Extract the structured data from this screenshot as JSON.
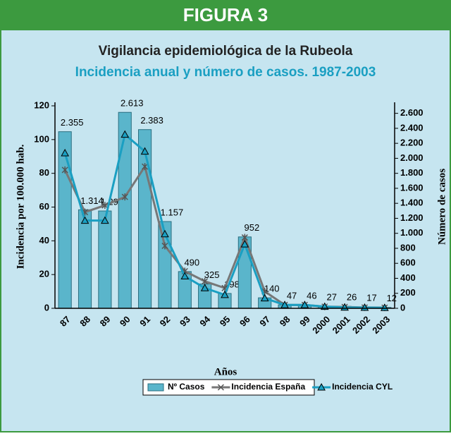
{
  "chart_data": {
    "type": "bar-line",
    "header": "FIGURA 3",
    "title": "Vigilancia epidemiológica de la Rubeola",
    "subtitle": "Incidencia anual y número de casos. 1987-2003",
    "y_label": "Incidencia por 100.000 hab.",
    "y2_label": "Número de casos",
    "x_label": "Años",
    "categories": [
      "87",
      "88",
      "89",
      "90",
      "91",
      "92",
      "93",
      "94",
      "95",
      "96",
      "97",
      "98",
      "99",
      "2000",
      "2001",
      "2002",
      "2003"
    ],
    "series": [
      {
        "name": "Nº Casos",
        "kind": "bar",
        "axis": "y2",
        "color": "#5ab5cb",
        "values": [
          2355,
          1314,
          1298,
          2613,
          2383,
          1157,
          490,
          325,
          198,
          952,
          140,
          47,
          46,
          27,
          26,
          17,
          12
        ],
        "value_labels": [
          "2.355",
          "1.314",
          "1.298",
          "2.613",
          "2.383",
          "1.157",
          "490",
          "325",
          "198",
          "952",
          "140",
          "47",
          "46",
          "27",
          "26",
          "17",
          "12"
        ]
      },
      {
        "name": "Incidencia España",
        "kind": "line",
        "color": "#777777",
        "values": [
          82,
          57,
          61,
          66,
          84,
          37,
          22,
          16,
          12,
          42,
          10,
          2,
          2,
          1,
          0.8,
          0.5,
          0.4
        ]
      },
      {
        "name": "Incidencia CYL",
        "kind": "line",
        "color": "#1a9fc2",
        "values": [
          92,
          52,
          52,
          103,
          93,
          44,
          19,
          12,
          8,
          38,
          6,
          2,
          2,
          1,
          0.5,
          0.4,
          0.3
        ]
      }
    ],
    "ylim": [
      0,
      120
    ],
    "yticks": [
      0,
      20,
      40,
      60,
      80,
      100,
      120
    ],
    "y2lim": [
      0,
      2700
    ],
    "y2ticks": [
      0,
      200,
      400,
      600,
      800,
      {
        "value": 1000,
        "label": "1.000"
      },
      {
        "value": 1200,
        "label": "1.200"
      },
      {
        "value": 1400,
        "label": "1.400"
      },
      {
        "value": 1600,
        "label": "1.600"
      },
      {
        "value": 1800,
        "label": "1.800"
      },
      {
        "value": 2000,
        "label": "2.000"
      },
      {
        "value": 2200,
        "label": "2.200"
      },
      {
        "value": 2400,
        "label": "2.400"
      },
      {
        "value": 2600,
        "label": "2.600"
      }
    ],
    "legend": "bottom"
  }
}
